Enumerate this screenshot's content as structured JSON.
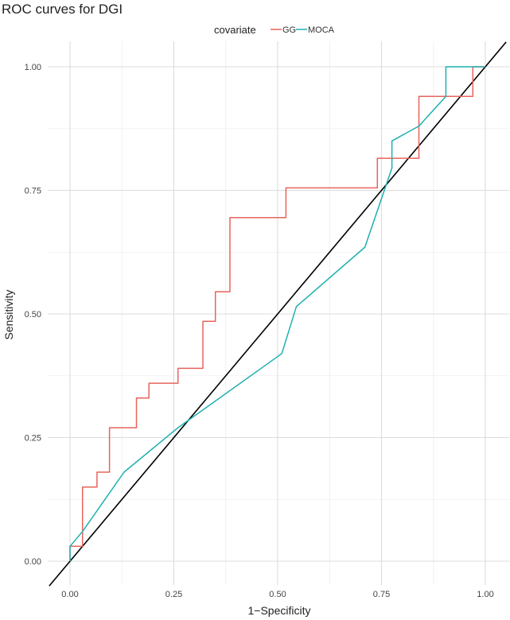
{
  "chart_data": {
    "type": "line",
    "title": "ROC curves for DGI",
    "xlabel": "1−Specificity",
    "ylabel": "Sensitivity",
    "xlim": [
      -0.05,
      1.05
    ],
    "ylim": [
      -0.05,
      1.05
    ],
    "x_ticks": [
      "0.00",
      "0.25",
      "0.50",
      "0.75",
      "1.00"
    ],
    "y_ticks": [
      "0.00",
      "0.25",
      "0.50",
      "0.75",
      "1.00"
    ],
    "grid": true,
    "legend": {
      "title": "covariate",
      "position": "top"
    },
    "series": [
      {
        "name": "GG",
        "color": "#e8635c",
        "step": true,
        "points": [
          [
            0.0,
            0.0
          ],
          [
            0.0,
            0.03
          ],
          [
            0.03,
            0.03
          ],
          [
            0.03,
            0.15
          ],
          [
            0.065,
            0.15
          ],
          [
            0.065,
            0.18
          ],
          [
            0.095,
            0.18
          ],
          [
            0.095,
            0.27
          ],
          [
            0.16,
            0.27
          ],
          [
            0.16,
            0.33
          ],
          [
            0.19,
            0.33
          ],
          [
            0.19,
            0.36
          ],
          [
            0.26,
            0.36
          ],
          [
            0.26,
            0.39
          ],
          [
            0.32,
            0.39
          ],
          [
            0.32,
            0.485
          ],
          [
            0.35,
            0.485
          ],
          [
            0.35,
            0.545
          ],
          [
            0.385,
            0.545
          ],
          [
            0.385,
            0.695
          ],
          [
            0.52,
            0.695
          ],
          [
            0.52,
            0.755
          ],
          [
            0.74,
            0.755
          ],
          [
            0.74,
            0.815
          ],
          [
            0.84,
            0.815
          ],
          [
            0.84,
            0.94
          ],
          [
            0.97,
            0.94
          ],
          [
            0.97,
            1.0
          ],
          [
            1.0,
            1.0
          ]
        ]
      },
      {
        "name": "MOCA",
        "color": "#1fb0b0",
        "step": false,
        "points": [
          [
            0.0,
            0.0
          ],
          [
            0.0,
            0.03
          ],
          [
            0.03,
            0.06
          ],
          [
            0.13,
            0.18
          ],
          [
            0.26,
            0.27
          ],
          [
            0.51,
            0.42
          ],
          [
            0.545,
            0.515
          ],
          [
            0.71,
            0.635
          ],
          [
            0.775,
            0.795
          ],
          [
            0.775,
            0.85
          ],
          [
            0.84,
            0.88
          ],
          [
            0.905,
            0.94
          ],
          [
            0.905,
            1.0
          ],
          [
            1.0,
            1.0
          ]
        ]
      },
      {
        "name": "",
        "color": "#000000",
        "step": false,
        "points": [
          [
            -0.05,
            -0.05
          ],
          [
            1.05,
            1.05
          ]
        ]
      }
    ]
  }
}
